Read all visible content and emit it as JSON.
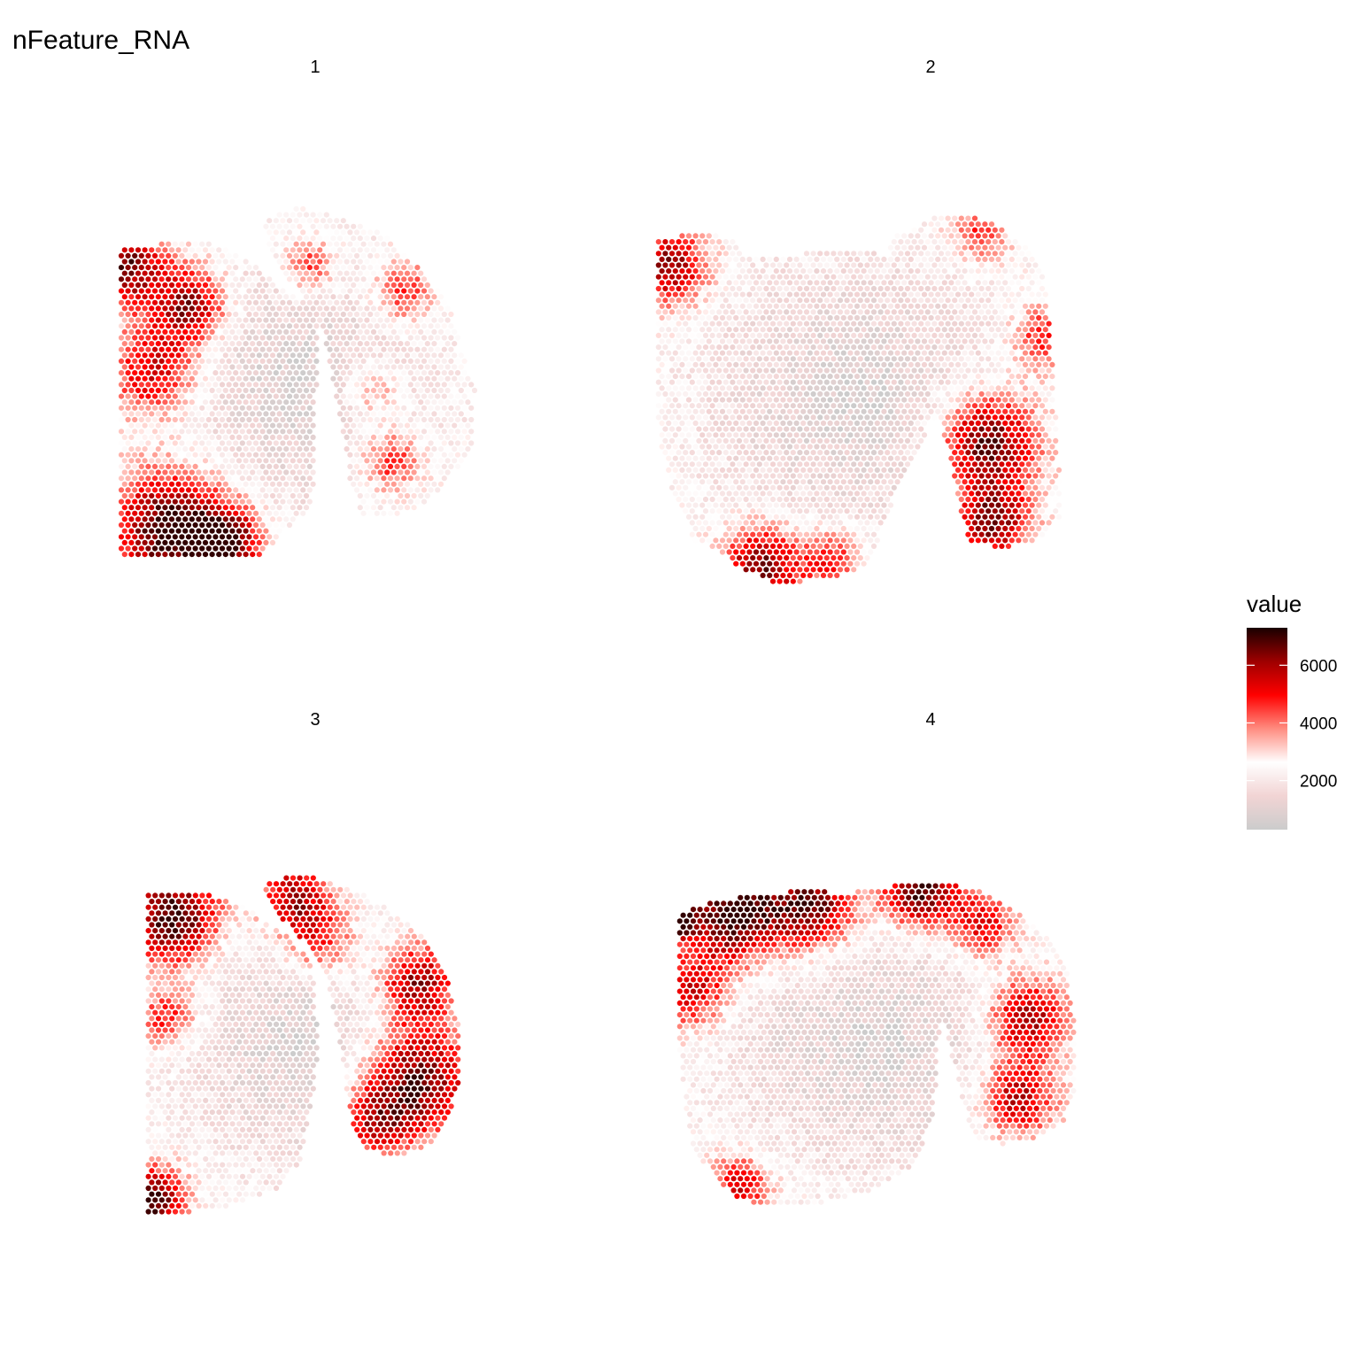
{
  "chart_data": {
    "type": "scatter",
    "title": "nFeature_RNA",
    "xlabel": "",
    "ylabel": "",
    "grid": false,
    "legend": {
      "title": "value",
      "placement": "right",
      "ticks": [
        {
          "value": 2000,
          "label": "2000"
        },
        {
          "value": 4000,
          "label": "4000"
        },
        {
          "value": 6000,
          "label": "6000"
        }
      ],
      "range": [
        300,
        7300
      ],
      "colors": [
        "#cccccc",
        "#f2d4d4",
        "#ffffff",
        "#ff8c80",
        "#ff0000",
        "#9e0000",
        "#190000"
      ]
    },
    "facets": [
      {
        "label": "1"
      },
      {
        "label": "2"
      },
      {
        "label": "3"
      },
      {
        "label": "4"
      }
    ]
  }
}
